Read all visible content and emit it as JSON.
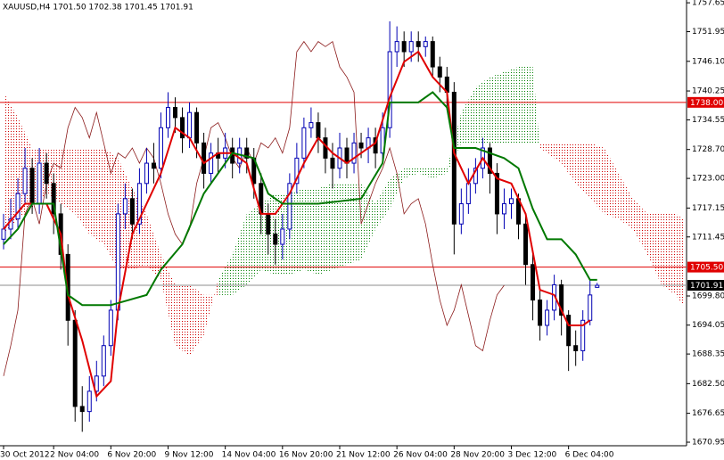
{
  "chart_data": {
    "type": "candlestick",
    "title": "XAUUSD,H4  1701.50 1702.38 1701.45 1701.91",
    "xlim": [
      -0.5,
      95.5
    ],
    "xticks": [
      {
        "value": 0,
        "label": "30 Oct 2012"
      },
      {
        "value": 7,
        "label": "2 Nov 04:00"
      },
      {
        "value": 15,
        "label": "6 Nov 20:00"
      },
      {
        "value": 23,
        "label": "9 Nov 12:00"
      },
      {
        "value": 31,
        "label": "14 Nov 04:00"
      },
      {
        "value": 39,
        "label": "16 Nov 20:00"
      },
      {
        "value": 47,
        "label": "21 Nov 12:00"
      },
      {
        "value": 55,
        "label": "26 Nov 04:00"
      },
      {
        "value": 63,
        "label": "28 Nov 20:00"
      },
      {
        "value": 71,
        "label": "3 Dec 12:00"
      },
      {
        "value": 79,
        "label": "6 Dec 04:00"
      }
    ],
    "ylim": [
      1670.25,
      1758.2
    ],
    "yticks": [
      1757.65,
      1751.95,
      {
        "value": 1746.1,
        "label": "1746.10"
      },
      1740.25,
      1734.55,
      {
        "value": 1728.7,
        "label": "1728.70"
      },
      {
        "value": 1723,
        "label": "1723.00"
      },
      1717.15,
      1711.45,
      {
        "value": 1699.8,
        "label": "1699.80"
      },
      1694.05,
      1688.35,
      {
        "value": 1682.5,
        "label": "1682.50"
      },
      1676.65,
      1670.95
    ],
    "up_color": "#0000b4",
    "down_color": "#000000",
    "candles": {
      "open": [
        1711,
        1713,
        1715,
        1720,
        1725,
        1718,
        1726,
        1722,
        1716,
        1708,
        1695,
        1678,
        1677,
        1681,
        1684,
        1690,
        1697,
        1716,
        1719,
        1714,
        1722,
        1726,
        1725,
        1733,
        1737,
        1735,
        1731,
        1736,
        1730,
        1724,
        1728,
        1727,
        1729,
        1726,
        1729,
        1727,
        1722,
        1716,
        1712,
        1710,
        1713,
        1722,
        1727,
        1733,
        1734,
        1731,
        1727,
        1725,
        1729,
        1726,
        1730,
        1729,
        1731,
        1728,
        1733,
        1748,
        1750,
        1748,
        1750,
        1749,
        1750,
        1745,
        1743,
        1740,
        1714,
        1718,
        1722,
        1725,
        1729,
        1724,
        1716,
        1718,
        1719,
        1714,
        1706,
        1699,
        1694,
        1697,
        1702,
        1696,
        1690,
        1689,
        1695,
        1701.5
      ],
      "high": [
        1716,
        1719,
        1723,
        1729,
        1727,
        1729,
        1728,
        1724,
        1718,
        1710,
        1697,
        1682,
        1684,
        1687,
        1692,
        1699,
        1718,
        1722,
        1721,
        1725,
        1729,
        1730,
        1736,
        1740,
        1739,
        1737,
        1738,
        1737,
        1732,
        1730,
        1731,
        1732,
        1731,
        1731,
        1731,
        1729,
        1724,
        1718,
        1715,
        1716,
        1724,
        1730,
        1735,
        1737,
        1736,
        1733,
        1730,
        1732,
        1731,
        1732,
        1732,
        1733,
        1733,
        1736,
        1754,
        1753,
        1752,
        1752,
        1752,
        1751,
        1751,
        1747,
        1745,
        1742,
        1721,
        1725,
        1727,
        1731,
        1730,
        1726,
        1721,
        1721,
        1720,
        1716,
        1708,
        1701,
        1699,
        1704,
        1703,
        1697,
        1693,
        1697,
        1703,
        1702.38
      ],
      "low": [
        1709,
        1711,
        1713,
        1718,
        1716,
        1716,
        1719,
        1712,
        1705,
        1690,
        1675,
        1673,
        1675,
        1679,
        1682,
        1688,
        1695,
        1713,
        1711,
        1712,
        1720,
        1722,
        1723,
        1731,
        1732,
        1728,
        1729,
        1727,
        1721,
        1722,
        1724,
        1725,
        1723,
        1724,
        1724,
        1719,
        1712,
        1708,
        1706,
        1707,
        1711,
        1720,
        1725,
        1731,
        1728,
        1724,
        1721,
        1723,
        1723,
        1724,
        1727,
        1726,
        1725,
        1726,
        1731,
        1745,
        1745,
        1746,
        1746,
        1747,
        1743,
        1740,
        1737,
        1708,
        1712,
        1716,
        1720,
        1723,
        1720,
        1712,
        1713,
        1715,
        1711,
        1702,
        1695,
        1691,
        1692,
        1695,
        1692,
        1685,
        1686,
        1687,
        1694,
        1701.45
      ],
      "close": [
        1713,
        1715,
        1720,
        1725,
        1718,
        1726,
        1722,
        1716,
        1708,
        1695,
        1678,
        1677,
        1681,
        1684,
        1690,
        1697,
        1716,
        1719,
        1714,
        1722,
        1726,
        1725,
        1733,
        1737,
        1735,
        1731,
        1736,
        1730,
        1724,
        1728,
        1727,
        1729,
        1726,
        1729,
        1727,
        1722,
        1716,
        1712,
        1710,
        1713,
        1722,
        1727,
        1733,
        1734,
        1731,
        1727,
        1725,
        1729,
        1726,
        1730,
        1729,
        1731,
        1728,
        1733,
        1748,
        1750,
        1748,
        1750,
        1749,
        1750,
        1745,
        1743,
        1740,
        1714,
        1718,
        1722,
        1725,
        1729,
        1724,
        1716,
        1718,
        1719,
        1714,
        1706,
        1699,
        1694,
        1697,
        1702,
        1696,
        1690,
        1689,
        1695,
        1700,
        1701.91
      ]
    },
    "chikou_color": "#8b1a1a",
    "lines": [
      {
        "color": "#e00000",
        "x": [
          0,
          3,
          6,
          8,
          9,
          11,
          13,
          15,
          16,
          18,
          20,
          22,
          24,
          26,
          28,
          30,
          32,
          34,
          36,
          38,
          40,
          42,
          44,
          46,
          48,
          50,
          52,
          54,
          56,
          58,
          60,
          62,
          63,
          65,
          67,
          69,
          71,
          73,
          75,
          77,
          79,
          81,
          82
        ],
        "values": [
          1713,
          1718,
          1718,
          1712,
          1700,
          1691,
          1680,
          1683,
          1697,
          1712,
          1718,
          1724,
          1733,
          1731,
          1726,
          1728,
          1728,
          1726,
          1716,
          1716,
          1720,
          1726,
          1731,
          1728,
          1726,
          1728,
          1730,
          1739,
          1746,
          1748,
          1743,
          1740,
          1728,
          1722,
          1727,
          1723,
          1722,
          1716,
          1701,
          1700,
          1694,
          1694,
          1695
        ]
      },
      {
        "color": "#007800",
        "x": [
          0,
          2,
          4,
          7,
          9,
          11,
          13,
          15,
          20,
          22,
          25,
          28,
          32,
          35,
          37,
          39,
          44,
          50,
          53,
          54,
          58,
          60,
          62,
          63,
          66,
          70,
          72,
          74,
          76,
          78,
          80,
          82,
          83
        ],
        "values": [
          1710,
          1713,
          1718,
          1718,
          1700,
          1698,
          1698,
          1698,
          1700,
          1705,
          1710,
          1720,
          1728,
          1727,
          1720,
          1718,
          1718,
          1719,
          1726,
          1738,
          1738,
          1740,
          1737,
          1729,
          1729,
          1727,
          1725,
          1717,
          1711,
          1711,
          1708,
          1703,
          1703
        ]
      }
    ],
    "cloud": {
      "up_color": "#008000",
      "down_color": "#d00000",
      "x": [
        0,
        2,
        4,
        6,
        8,
        10,
        12,
        14,
        16,
        18,
        20,
        22,
        24,
        26,
        28,
        30,
        32,
        34,
        36,
        38,
        40,
        42,
        44,
        46,
        48,
        50,
        52,
        54,
        56,
        58,
        60,
        62,
        64,
        66,
        68,
        70,
        72,
        74,
        75,
        78,
        80,
        82,
        84,
        86,
        88,
        90,
        92,
        94,
        95
      ],
      "span_a": [
        1712,
        1715,
        1717,
        1720,
        1718,
        1716,
        1712,
        1710,
        1705,
        1705,
        1706,
        1703,
        1690,
        1688,
        1692,
        1703,
        1708,
        1716,
        1718,
        1720,
        1720,
        1721,
        1721,
        1722,
        1722,
        1722,
        1718,
        1723,
        1725,
        1725,
        1725,
        1725,
        1736,
        1741,
        1743,
        1744,
        1745,
        1745,
        1729,
        1726,
        1722,
        1719,
        1716,
        1715,
        1713,
        1708,
        1702,
        1700,
        1698
      ],
      "span_b": [
        1740,
        1735,
        1729,
        1729,
        1729,
        1729,
        1729,
        1729,
        1727,
        1721,
        1716,
        1708,
        1702,
        1702,
        1700,
        1700,
        1700,
        1702,
        1705,
        1704,
        1704,
        1705,
        1704,
        1705,
        1706,
        1707,
        1713,
        1717,
        1723,
        1724,
        1723,
        1724,
        1730,
        1730,
        1730,
        1730,
        1730,
        1730,
        1730,
        1730,
        1730,
        1730,
        1729,
        1724,
        1719,
        1716,
        1716,
        1716,
        1715
      ]
    },
    "hlines": [
      {
        "level": {
          "value": 1738,
          "label": "1738.00"
        },
        "color": "#e00000"
      },
      {
        "level": {
          "value": 1705.5,
          "label": "1705.50"
        },
        "color": "#e00000"
      },
      {
        "level": 1701.91,
        "color": "#8c8c8c",
        "label_color": "#000000"
      }
    ]
  }
}
